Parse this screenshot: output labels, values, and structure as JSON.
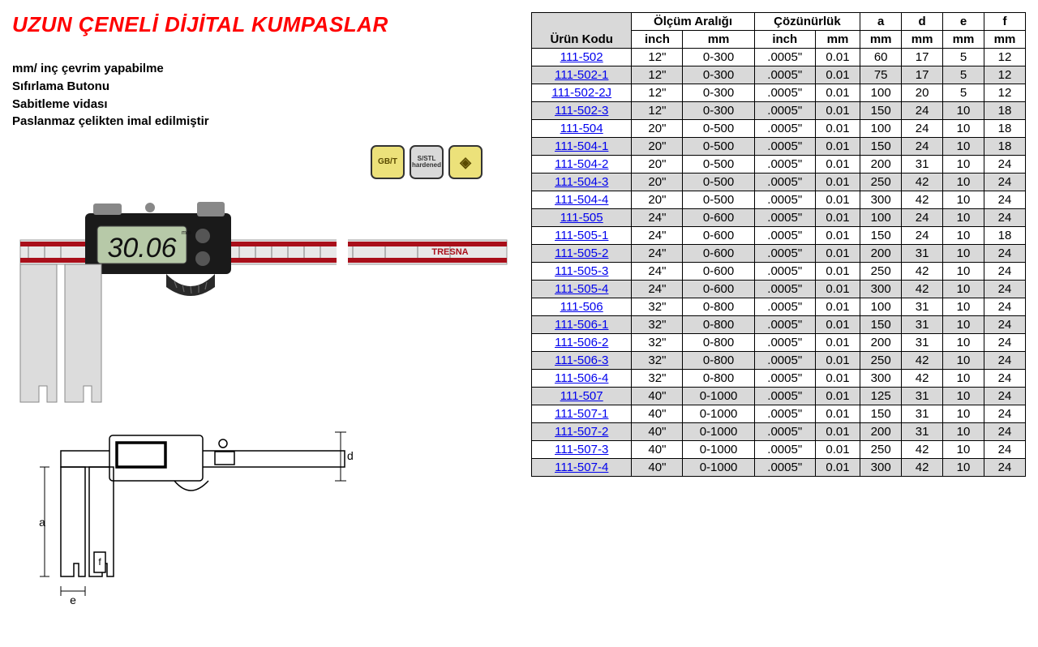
{
  "title": "UZUN ÇENELİ DİJİTAL KUMPASLAR",
  "features": [
    "mm/ inç çevrim yapabilme",
    "Sıfırlama Butonu",
    "Sabitleme vidası",
    "Paslanmaz çelikten imal edilmiştir"
  ],
  "badges": [
    {
      "text": "GB/T",
      "style": "y"
    },
    {
      "text": "S/STL\nhardened",
      "style": "g"
    },
    {
      "text": "◈",
      "style": "y"
    }
  ],
  "caliper_display": "30.06",
  "brand_text": "TRESNA",
  "schematic_labels": {
    "a": "a",
    "d": "d",
    "e": "e",
    "f": "f"
  },
  "table": {
    "header_groups": [
      {
        "label": "Ürün Kodu",
        "sub": [
          ""
        ],
        "shade": true,
        "rowspan": 2
      },
      {
        "label": "Ölçüm Aralığı",
        "sub": [
          "inch",
          "mm"
        ]
      },
      {
        "label": "Çözünürlük",
        "sub": [
          "inch",
          "mm"
        ]
      },
      {
        "label": "a",
        "sub": [
          "mm"
        ]
      },
      {
        "label": "d",
        "sub": [
          "mm"
        ]
      },
      {
        "label": "e",
        "sub": [
          "mm"
        ]
      },
      {
        "label": "f",
        "sub": [
          "mm"
        ]
      }
    ],
    "rows": [
      {
        "code": "111-502",
        "inch": "12\"",
        "mm": "0-300",
        "res_i": ".0005\"",
        "res_m": "0.01",
        "a": "60",
        "d": "17",
        "e": "5",
        "f": "12",
        "shade": false
      },
      {
        "code": "111-502-1",
        "inch": "12\"",
        "mm": "0-300",
        "res_i": ".0005\"",
        "res_m": "0.01",
        "a": "75",
        "d": "17",
        "e": "5",
        "f": "12",
        "shade": true
      },
      {
        "code": "111-502-2J",
        "inch": "12\"",
        "mm": "0-300",
        "res_i": ".0005\"",
        "res_m": "0.01",
        "a": "100",
        "d": "20",
        "e": "5",
        "f": "12",
        "shade": false
      },
      {
        "code": "111-502-3",
        "inch": "12\"",
        "mm": "0-300",
        "res_i": ".0005\"",
        "res_m": "0.01",
        "a": "150",
        "d": "24",
        "e": "10",
        "f": "18",
        "shade": true
      },
      {
        "code": "111-504",
        "inch": "20\"",
        "mm": "0-500",
        "res_i": ".0005\"",
        "res_m": "0.01",
        "a": "100",
        "d": "24",
        "e": "10",
        "f": "18",
        "shade": false
      },
      {
        "code": "111-504-1",
        "inch": "20\"",
        "mm": "0-500",
        "res_i": ".0005\"",
        "res_m": "0.01",
        "a": "150",
        "d": "24",
        "e": "10",
        "f": "18",
        "shade": true
      },
      {
        "code": "111-504-2",
        "inch": "20\"",
        "mm": "0-500",
        "res_i": ".0005\"",
        "res_m": "0.01",
        "a": "200",
        "d": "31",
        "e": "10",
        "f": "24",
        "shade": false
      },
      {
        "code": "111-504-3",
        "inch": "20\"",
        "mm": "0-500",
        "res_i": ".0005\"",
        "res_m": "0.01",
        "a": "250",
        "d": "42",
        "e": "10",
        "f": "24",
        "shade": true
      },
      {
        "code": "111-504-4",
        "inch": "20\"",
        "mm": "0-500",
        "res_i": ".0005\"",
        "res_m": "0.01",
        "a": "300",
        "d": "42",
        "e": "10",
        "f": "24",
        "shade": false
      },
      {
        "code": "111-505",
        "inch": "24\"",
        "mm": "0-600",
        "res_i": ".0005\"",
        "res_m": "0.01",
        "a": "100",
        "d": "24",
        "e": "10",
        "f": "24",
        "shade": true
      },
      {
        "code": "111-505-1",
        "inch": "24\"",
        "mm": "0-600",
        "res_i": ".0005\"",
        "res_m": "0.01",
        "a": "150",
        "d": "24",
        "e": "10",
        "f": "18",
        "shade": false
      },
      {
        "code": "111-505-2",
        "inch": "24\"",
        "mm": "0-600",
        "res_i": ".0005\"",
        "res_m": "0.01",
        "a": "200",
        "d": "31",
        "e": "10",
        "f": "24",
        "shade": true
      },
      {
        "code": "111-505-3",
        "inch": "24\"",
        "mm": "0-600",
        "res_i": ".0005\"",
        "res_m": "0.01",
        "a": "250",
        "d": "42",
        "e": "10",
        "f": "24",
        "shade": false
      },
      {
        "code": "111-505-4",
        "inch": "24\"",
        "mm": "0-600",
        "res_i": ".0005\"",
        "res_m": "0.01",
        "a": "300",
        "d": "42",
        "e": "10",
        "f": "24",
        "shade": true
      },
      {
        "code": "111-506",
        "inch": "32\"",
        "mm": "0-800",
        "res_i": ".0005\"",
        "res_m": "0.01",
        "a": "100",
        "d": "31",
        "e": "10",
        "f": "24",
        "shade": false
      },
      {
        "code": "111-506-1",
        "inch": "32\"",
        "mm": "0-800",
        "res_i": ".0005\"",
        "res_m": "0.01",
        "a": "150",
        "d": "31",
        "e": "10",
        "f": "24",
        "shade": true
      },
      {
        "code": "111-506-2",
        "inch": "32\"",
        "mm": "0-800",
        "res_i": ".0005\"",
        "res_m": "0.01",
        "a": "200",
        "d": "31",
        "e": "10",
        "f": "24",
        "shade": false
      },
      {
        "code": "111-506-3",
        "inch": "32\"",
        "mm": "0-800",
        "res_i": ".0005\"",
        "res_m": "0.01",
        "a": "250",
        "d": "42",
        "e": "10",
        "f": "24",
        "shade": true
      },
      {
        "code": "111-506-4",
        "inch": "32\"",
        "mm": "0-800",
        "res_i": ".0005\"",
        "res_m": "0.01",
        "a": "300",
        "d": "42",
        "e": "10",
        "f": "24",
        "shade": false
      },
      {
        "code": "111-507",
        "inch": "40\"",
        "mm": "0-1000",
        "res_i": ".0005\"",
        "res_m": "0.01",
        "a": "125",
        "d": "31",
        "e": "10",
        "f": "24",
        "shade": true
      },
      {
        "code": "111-507-1",
        "inch": "40\"",
        "mm": "0-1000",
        "res_i": ".0005\"",
        "res_m": "0.01",
        "a": "150",
        "d": "31",
        "e": "10",
        "f": "24",
        "shade": false
      },
      {
        "code": "111-507-2",
        "inch": "40\"",
        "mm": "0-1000",
        "res_i": ".0005\"",
        "res_m": "0.01",
        "a": "200",
        "d": "31",
        "e": "10",
        "f": "24",
        "shade": true
      },
      {
        "code": "111-507-3",
        "inch": "40\"",
        "mm": "0-1000",
        "res_i": ".0005\"",
        "res_m": "0.01",
        "a": "250",
        "d": "42",
        "e": "10",
        "f": "24",
        "shade": false
      },
      {
        "code": "111-507-4",
        "inch": "40\"",
        "mm": "0-1000",
        "res_i": ".0005\"",
        "res_m": "0.01",
        "a": "300",
        "d": "42",
        "e": "10",
        "f": "24",
        "shade": true
      }
    ]
  },
  "colors": {
    "title": "#ff0000",
    "link": "#0000ee",
    "shade": "#d9d9d9",
    "border": "#000000",
    "badge_yellow": "#ece17a",
    "caliper_red": "#a90f1a",
    "lcd_bg": "#b7c9a8"
  }
}
